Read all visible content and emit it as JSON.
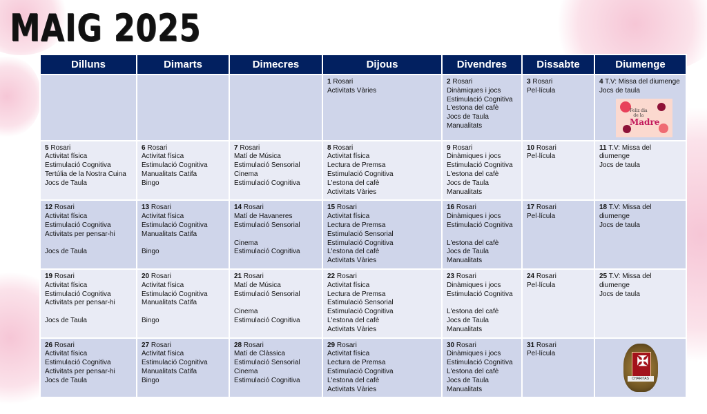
{
  "title": "MAIG 2025",
  "colors": {
    "header_bg": "#022060",
    "row_dark": "#cfd5ea",
    "row_light": "#e9ebf5",
    "accent_pink": "#f6c6d6"
  },
  "days_header": [
    "Dilluns",
    "Dimarts",
    "Dimecres",
    "Dijous",
    "Divendres",
    "Dissabte",
    "Diumenge"
  ],
  "images": {
    "mothers_day": "Feliz dia de la Madre",
    "badge": "CHARITAS"
  },
  "weeks": [
    [
      null,
      null,
      null,
      {
        "day": "1",
        "first": "Rosari",
        "lines": [
          "Activitats Vàries"
        ]
      },
      {
        "day": "2",
        "first": "Rosari",
        "lines": [
          "Dinàmiques i jocs",
          "Estimulació Cognitiva",
          "L'estona del cafè",
          "Jocs de Taula",
          "Manualitats"
        ]
      },
      {
        "day": "3",
        "first": "Rosari",
        "lines": [
          "Pel·lícula"
        ]
      },
      {
        "day": "4",
        "first": "T.V: Missa del diumenge",
        "lines": [
          "Jocs de taula"
        ],
        "image": "mothers_day"
      }
    ],
    [
      {
        "day": "5",
        "first": "Rosari",
        "lines": [
          "Activitat física",
          "Estimulació Cognitiva",
          "Tertúlia de la Nostra Cuina",
          "Jocs de Taula"
        ]
      },
      {
        "day": "6",
        "first": "Rosari",
        "lines": [
          "Activitat física",
          "Estimulació Cognitiva",
          "Manualitats Catifa",
          "Bingo"
        ]
      },
      {
        "day": "7",
        "first": "Rosari",
        "lines": [
          "Matí de Música",
          "Estimulació Sensorial",
          "Cinema",
          "Estimulació Cognitiva"
        ]
      },
      {
        "day": "8",
        "first": "Rosari",
        "lines": [
          "Activitat física",
          "Lectura de Premsa",
          "Estimulació Cognitiva",
          "L'estona del cafè",
          "Activitats Vàries"
        ]
      },
      {
        "day": "9",
        "first": "Rosari",
        "lines": [
          "Dinàmiques i jocs",
          "Estimulació Cognitiva",
          "L'estona del cafè",
          "Jocs de Taula",
          "Manualitats"
        ]
      },
      {
        "day": "10",
        "first": "Rosari",
        "lines": [
          "Pel·lícula"
        ]
      },
      {
        "day": "11",
        "first": "T.V: Missa del",
        "lines": [
          "diumenge",
          "Jocs de taula"
        ]
      }
    ],
    [
      {
        "day": "12",
        "first": "Rosari",
        "lines": [
          "Activitat física",
          "Estimulació Cognitiva",
          "Activitats per pensar-hi",
          "",
          "Jocs de Taula"
        ]
      },
      {
        "day": "13",
        "first": "Rosari",
        "lines": [
          "Activitat física",
          "Estimulació Cognitiva",
          "Manualitats Catifa",
          "",
          "Bingo"
        ]
      },
      {
        "day": "14",
        "first": "Rosari",
        "lines": [
          "Matí de Havaneres",
          "Estimulació Sensorial",
          "",
          "Cinema",
          "Estimulació Cognitiva"
        ]
      },
      {
        "day": "15",
        "first": "Rosari",
        "lines": [
          "Activitat física",
          "Lectura de Premsa",
          "Estimulació Sensorial",
          "Estimulació Cognitiva",
          "L'estona del cafè",
          "Activitats Vàries"
        ]
      },
      {
        "day": "16",
        "first": "Rosari",
        "lines": [
          "Dinàmiques i jocs",
          "Estimulació Cognitiva",
          "",
          "L'estona del cafè",
          "Jocs de Taula",
          "Manualitats"
        ]
      },
      {
        "day": "17",
        "first": "Rosari",
        "lines": [
          "Pel·lícula"
        ]
      },
      {
        "day": "18",
        "first": "T.V: Missa del",
        "lines": [
          "diumenge",
          "Jocs de taula"
        ]
      }
    ],
    [
      {
        "day": "19",
        "first": "Rosari",
        "lines": [
          "Activitat física",
          "Estimulació Cognitiva",
          "Activitats per pensar-hi",
          "",
          "Jocs de Taula"
        ]
      },
      {
        "day": "20",
        "first": "Rosari",
        "lines": [
          "Activitat física",
          "Estimulació Cognitiva",
          "Manualitats Catifa",
          "",
          "Bingo"
        ]
      },
      {
        "day": "21",
        "first": "Rosari",
        "lines": [
          "Matí de Música",
          "Estimulació Sensorial",
          "",
          "Cinema",
          "Estimulació Cognitiva"
        ]
      },
      {
        "day": "22",
        "first": "Rosari",
        "lines": [
          "Activitat física",
          "Lectura de Premsa",
          "Estimulació Sensorial",
          "Estimulació Cognitiva",
          "L'estona del cafè",
          "Activitats Vàries"
        ]
      },
      {
        "day": "23",
        "first": "Rosari",
        "lines": [
          "Dinàmiques i jocs",
          "Estimulació Cognitiva",
          "",
          "L'estona del cafè",
          "Jocs de Taula",
          "Manualitats"
        ]
      },
      {
        "day": "24",
        "first": "Rosari",
        "lines": [
          "Pel·lícula"
        ]
      },
      {
        "day": "25",
        "first": "T.V: Missa del",
        "lines": [
          "diumenge",
          "Jocs de taula"
        ]
      }
    ],
    [
      {
        "day": "26",
        "first": "Rosari",
        "lines": [
          "Activitat física",
          "Estimulació Cognitiva",
          "Activitats per pensar-hi",
          "Jocs de Taula"
        ]
      },
      {
        "day": "27",
        "first": "Rosari",
        "lines": [
          "Activitat física",
          "Estimulació Cognitiva",
          "Manualitats Catifa",
          "Bingo"
        ]
      },
      {
        "day": "28",
        "first": "Rosari",
        "lines": [
          "Matí de Clàssica",
          "Estimulació Sensorial",
          "Cinema",
          "Estimulació Cognitiva"
        ]
      },
      {
        "day": "29",
        "first": "Rosari",
        "lines": [
          "Activitat física",
          "Lectura de Premsa",
          "Estimulació Cognitiva",
          "L'estona del cafè",
          "Activitats Vàries"
        ]
      },
      {
        "day": "30",
        "first": "Rosari",
        "lines": [
          "Dinàmiques i jocs",
          "Estimulació Cognitiva",
          "L'estona del cafè",
          "Jocs de Taula",
          "Manualitats"
        ]
      },
      {
        "day": "31",
        "first": "Rosari",
        "lines": [
          "Pel·lícula"
        ]
      },
      {
        "image": "badge"
      }
    ]
  ]
}
